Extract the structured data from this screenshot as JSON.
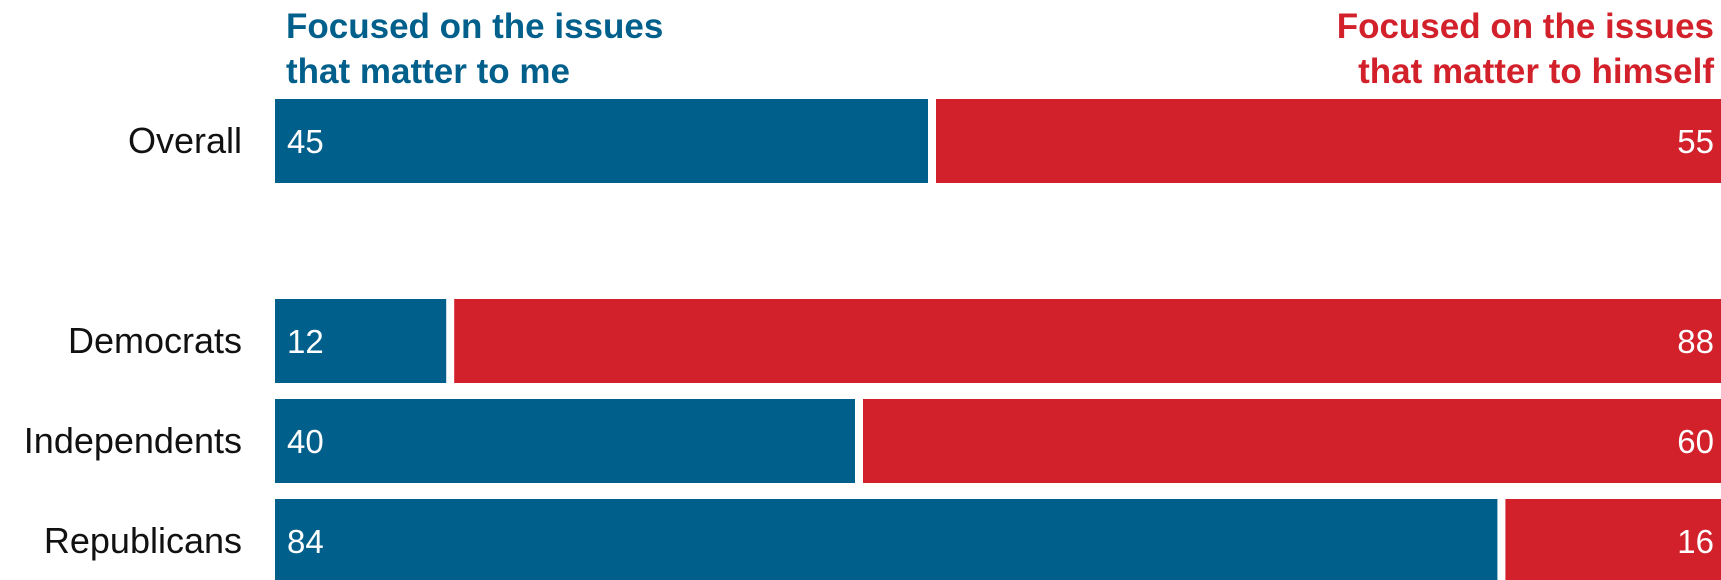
{
  "chart_data": {
    "type": "bar",
    "orientation": "horizontal",
    "stacked": true,
    "normalized_total": 100,
    "categories": [
      "Overall",
      "Democrats",
      "Independents",
      "Republicans"
    ],
    "series": [
      {
        "name_lines": [
          "Focused on the issues",
          "that matter to me"
        ],
        "color": "#005F8B",
        "values": [
          45,
          12,
          40,
          84
        ]
      },
      {
        "name_lines": [
          "Focused on the issues",
          "that matter to himself"
        ],
        "color": "#D3212B",
        "values": [
          55,
          88,
          60,
          16
        ]
      }
    ],
    "legend_placement": "top",
    "grid": false,
    "xlim": [
      0,
      100
    ]
  }
}
